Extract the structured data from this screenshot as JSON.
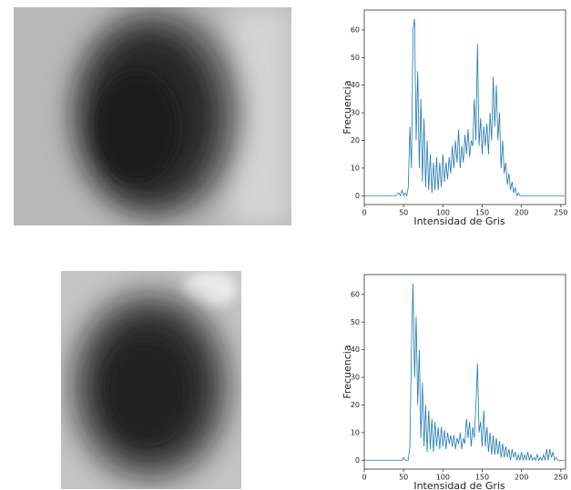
{
  "chart_data": [
    {
      "type": "line",
      "xlabel": "Intensidad de Gris",
      "ylabel": "Frecuencia",
      "xlim": [
        0,
        256
      ],
      "ylim": [
        -3.2,
        67.2
      ],
      "xticks": [
        0,
        50,
        100,
        150,
        200,
        250
      ],
      "yticks": [
        0,
        10,
        20,
        30,
        40,
        50,
        60
      ],
      "x": [
        0,
        40,
        44,
        46,
        48,
        50,
        52,
        54,
        56,
        58,
        60,
        62,
        64,
        66,
        68,
        70,
        72,
        74,
        76,
        78,
        80,
        82,
        84,
        86,
        88,
        90,
        92,
        94,
        96,
        98,
        100,
        102,
        104,
        106,
        108,
        110,
        112,
        114,
        116,
        118,
        120,
        122,
        124,
        126,
        128,
        130,
        132,
        134,
        136,
        138,
        140,
        142,
        144,
        146,
        148,
        150,
        152,
        154,
        156,
        158,
        160,
        162,
        164,
        166,
        168,
        170,
        172,
        174,
        176,
        178,
        180,
        182,
        184,
        186,
        188,
        190,
        192,
        194,
        196,
        198,
        200,
        255
      ],
      "series": [
        {
          "color": "#1f77b4",
          "values": [
            0,
            0,
            1,
            0,
            2,
            0,
            1,
            0,
            3,
            25,
            10,
            60,
            64,
            20,
            45,
            10,
            35,
            5,
            28,
            3,
            20,
            2,
            15,
            1,
            12,
            2,
            14,
            2,
            12,
            3,
            15,
            5,
            12,
            6,
            14,
            8,
            18,
            10,
            20,
            12,
            24,
            10,
            18,
            12,
            22,
            15,
            24,
            14,
            20,
            18,
            35,
            20,
            55,
            18,
            28,
            15,
            25,
            18,
            26,
            15,
            30,
            20,
            43,
            25,
            40,
            20,
            30,
            10,
            20,
            8,
            12,
            4,
            8,
            2,
            5,
            1,
            3,
            0,
            1,
            0,
            0,
            0
          ]
        }
      ]
    },
    {
      "type": "line",
      "xlabel": "Intensidad de Gris",
      "ylabel": "Frecuencia",
      "xlim": [
        0,
        256
      ],
      "ylim": [
        -3.2,
        67.2
      ],
      "xticks": [
        0,
        50,
        100,
        150,
        200,
        250
      ],
      "yticks": [
        0,
        10,
        20,
        30,
        40,
        50,
        60
      ],
      "x": [
        0,
        48,
        50,
        52,
        56,
        58,
        60,
        62,
        64,
        66,
        68,
        70,
        72,
        74,
        76,
        78,
        80,
        82,
        84,
        86,
        88,
        90,
        92,
        94,
        96,
        98,
        100,
        102,
        104,
        106,
        108,
        110,
        112,
        114,
        116,
        118,
        120,
        122,
        124,
        126,
        128,
        130,
        132,
        134,
        136,
        138,
        140,
        142,
        144,
        146,
        148,
        150,
        152,
        154,
        156,
        158,
        160,
        162,
        164,
        166,
        168,
        170,
        172,
        174,
        176,
        178,
        180,
        182,
        184,
        186,
        188,
        190,
        192,
        194,
        196,
        198,
        200,
        202,
        204,
        206,
        208,
        210,
        212,
        214,
        216,
        218,
        220,
        222,
        224,
        226,
        228,
        230,
        232,
        234,
        236,
        238,
        240,
        242,
        244,
        246,
        255
      ],
      "series": [
        {
          "color": "#1f77b4",
          "values": [
            0,
            0,
            1,
            0,
            0,
            5,
            40,
            64,
            30,
            52,
            20,
            40,
            8,
            28,
            5,
            20,
            3,
            18,
            4,
            15,
            3,
            14,
            5,
            12,
            4,
            12,
            5,
            11,
            4,
            10,
            6,
            9,
            5,
            9,
            4,
            8,
            6,
            10,
            4,
            8,
            6,
            15,
            8,
            14,
            5,
            12,
            8,
            20,
            35,
            10,
            14,
            5,
            18,
            5,
            12,
            3,
            10,
            2,
            9,
            2,
            8,
            2,
            7,
            1,
            6,
            1,
            5,
            1,
            4,
            0,
            4,
            1,
            3,
            0,
            2,
            0,
            3,
            0,
            2,
            0,
            3,
            0,
            2,
            0,
            1,
            0,
            2,
            0,
            1,
            0,
            2,
            0,
            4,
            0,
            4,
            1,
            3,
            0,
            1,
            0,
            0
          ]
        }
      ]
    }
  ]
}
